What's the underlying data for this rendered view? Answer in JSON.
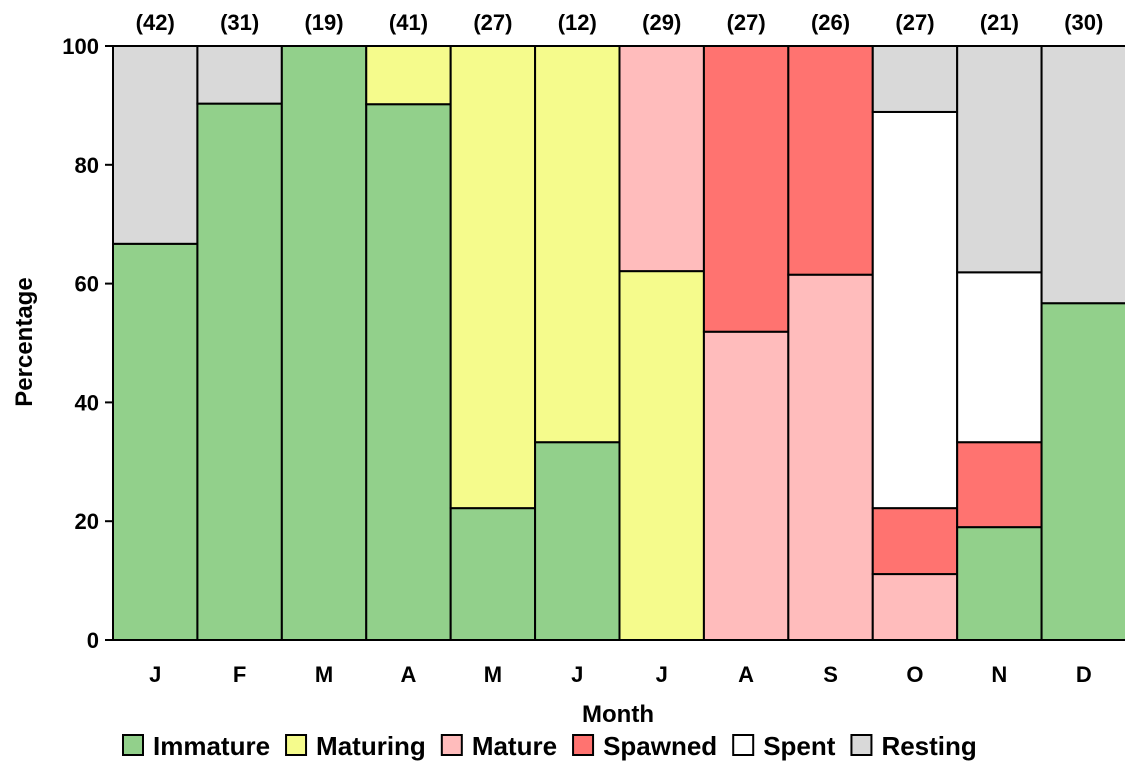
{
  "chart_data": {
    "type": "stacked-bar",
    "title": "",
    "xlabel": "Month",
    "ylabel": "Percentage",
    "ylim": [
      0,
      100
    ],
    "yticks": [
      0,
      20,
      40,
      60,
      80,
      100
    ],
    "categories": [
      "J",
      "F",
      "M",
      "A",
      "M",
      "J",
      "J",
      "A",
      "S",
      "O",
      "N",
      "D"
    ],
    "counts": [
      "(42)",
      "(31)",
      "(19)",
      "(41)",
      "(27)",
      "(12)",
      "(29)",
      "(27)",
      "(26)",
      "(27)",
      "(21)",
      "(30)"
    ],
    "series": [
      {
        "name": "Immature",
        "color": "#92d08b",
        "values": [
          66.7,
          90.3,
          100,
          90.2,
          22.2,
          33.3,
          0,
          0,
          0,
          0,
          19.0,
          56.7
        ]
      },
      {
        "name": "Maturing",
        "color": "#f5fb8c",
        "values": [
          0,
          0,
          0,
          9.8,
          77.8,
          66.7,
          62.1,
          0,
          0,
          0,
          0,
          0
        ]
      },
      {
        "name": "Mature",
        "color": "#ffbcbc",
        "values": [
          0,
          0,
          0,
          0,
          0,
          0,
          37.9,
          51.9,
          61.5,
          11.1,
          0,
          0
        ]
      },
      {
        "name": "Spawned",
        "color": "#ff7370",
        "values": [
          0,
          0,
          0,
          0,
          0,
          0,
          0,
          48.1,
          38.5,
          11.1,
          14.3,
          0
        ]
      },
      {
        "name": "Spent",
        "color": "#ffffff",
        "values": [
          0,
          0,
          0,
          0,
          0,
          0,
          0,
          0,
          0,
          66.7,
          28.6,
          0
        ]
      },
      {
        "name": "Resting",
        "color": "#d9d9d9",
        "values": [
          33.3,
          9.7,
          0,
          0,
          0,
          0,
          0,
          0,
          0,
          11.1,
          38.1,
          43.3
        ]
      }
    ],
    "grid": false,
    "legend_position": "bottom"
  }
}
